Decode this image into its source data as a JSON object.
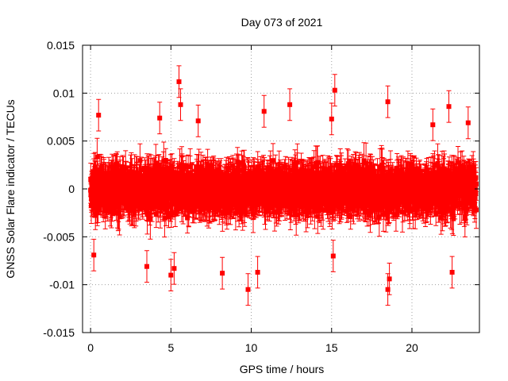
{
  "chart_data": {
    "type": "scatter",
    "title": "Day 073 of 2021",
    "xlabel": "GPS time / hours",
    "ylabel": "GNSS Solar Flare indicator / TECUs",
    "xlim": [
      -0.5,
      24.2
    ],
    "ylim": [
      -0.015,
      0.015
    ],
    "x_ticks": [
      0,
      5,
      10,
      15,
      20
    ],
    "x_tick_labels": [
      "0",
      "5",
      "10",
      "15",
      "20"
    ],
    "y_ticks": [
      -0.015,
      -0.01,
      -0.005,
      0,
      0.005,
      0.01,
      0.015
    ],
    "y_tick_labels": [
      "-0.015",
      "-0.01",
      "-0.005",
      "0",
      "0.005",
      "0.01",
      "0.015"
    ],
    "grid": true,
    "legend": "none",
    "colors": {
      "series": "#ff0000",
      "grid": "#a0a0a0",
      "axes": "#000000"
    },
    "error_bars": true,
    "series": [
      {
        "values_description_free": true,
        "x_range": [
          0,
          24
        ],
        "typical_spread": 0.0025,
        "typical_error": 0.0015,
        "notable_points": [
          {
            "x": 0.5,
            "y": 0.0077
          },
          {
            "x": 0.2,
            "y": -0.0069
          },
          {
            "x": 3.5,
            "y": -0.0081
          },
          {
            "x": 4.3,
            "y": 0.0074
          },
          {
            "x": 5.0,
            "y": -0.009
          },
          {
            "x": 5.2,
            "y": -0.0083
          },
          {
            "x": 5.5,
            "y": 0.0112
          },
          {
            "x": 5.6,
            "y": 0.0088
          },
          {
            "x": 6.7,
            "y": 0.0071
          },
          {
            "x": 8.2,
            "y": -0.0088
          },
          {
            "x": 9.8,
            "y": -0.0105
          },
          {
            "x": 10.4,
            "y": -0.0087
          },
          {
            "x": 10.8,
            "y": 0.0081
          },
          {
            "x": 12.4,
            "y": 0.0088
          },
          {
            "x": 15.0,
            "y": 0.0073
          },
          {
            "x": 15.2,
            "y": 0.0103
          },
          {
            "x": 15.1,
            "y": -0.007
          },
          {
            "x": 18.5,
            "y": 0.0091
          },
          {
            "x": 18.6,
            "y": -0.0094
          },
          {
            "x": 18.5,
            "y": -0.0105
          },
          {
            "x": 21.3,
            "y": 0.0067
          },
          {
            "x": 22.3,
            "y": 0.0086
          },
          {
            "x": 22.5,
            "y": -0.0087
          },
          {
            "x": 23.5,
            "y": 0.0069
          }
        ]
      }
    ]
  }
}
